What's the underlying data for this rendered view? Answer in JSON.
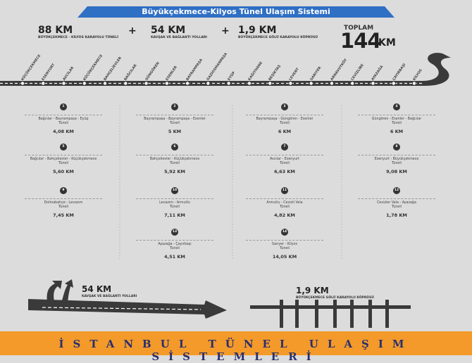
{
  "title": "Büyükçekmece-Kilyos Tünel Ulaşım Sistemi",
  "stats": [
    {
      "value": "88 KM",
      "label": "BÜYÜKÇEKMECE - KİLYOS KARAYOLU TÜNELİ"
    },
    {
      "value": "54 KM",
      "label": "KAVŞAK VE BAĞLANTI YOLLARI"
    },
    {
      "value": "1,9 KM",
      "label": "BÜYÜKÇEKMECE GÖLÜ KARAYOLU KÖPRÜSÜ"
    }
  ],
  "plus_sign": "+",
  "total": {
    "label": "TOPLAM",
    "value": "144",
    "unit": "KM"
  },
  "stations": [
    "KÜÇÜKÇEKMECE",
    "ESENYURT",
    "AVCILAR",
    "KÜÇÜKÇEKMECE",
    "BAHÇELİEVLER",
    "BAĞCILAR",
    "GÜNGÖREN",
    "ESENLER",
    "BAYRAMPAŞA",
    "GAZİOSMANPAŞA",
    "EYÜP",
    "KAĞITHANE",
    "BEŞİKTAŞ",
    "LEVENT",
    "SARIYER",
    "ARNAVUTKÖY",
    "CEVİZLİBE",
    "AYAZAĞA",
    "ÇAYIRBAŞI",
    "KİLYOS"
  ],
  "tunnels": [
    {
      "num": "1",
      "name_lines": [
        "Bağcılar - Bayrampaşa - Eyüp",
        "Tüneli"
      ],
      "length": "4,08 KM"
    },
    {
      "num": "5",
      "name_lines": [
        "Bağcılar - Bahçelievler - Küçükçekmece",
        "Tüneli"
      ],
      "length": "5,60 KM"
    },
    {
      "num": "9",
      "name_lines": [
        "Dolmabahçe - Levazım",
        "Tüneli"
      ],
      "length": "7,45 KM"
    },
    {
      "num": "2",
      "name_lines": [
        "Bayrampaşa - Bayrampaşa - Esenler",
        "Tüneli"
      ],
      "length": "5 KM"
    },
    {
      "num": "6",
      "name_lines": [
        "Bahçelievler - Küçükçekmece",
        "Tüneli"
      ],
      "length": "5,92 KM"
    },
    {
      "num": "10",
      "name_lines": [
        "Levazım - Armutlu",
        "Tüneli"
      ],
      "length": "7,11 KM"
    },
    {
      "num": "13",
      "name_lines": [
        "Ayazağa - Çayırbaşı",
        "Tüneli"
      ],
      "length": "4,51 KM"
    },
    {
      "num": "3",
      "name_lines": [
        "Bayrampaşa - Güngören - Esenler",
        "Tüneli"
      ],
      "length": "6 KM"
    },
    {
      "num": "7",
      "name_lines": [
        "Avcılar - Esenyurt",
        "Tüneli"
      ],
      "length": "6,63 KM"
    },
    {
      "num": "11",
      "name_lines": [
        "Armutlu - Cevizli Vela",
        "Tüneli"
      ],
      "length": "4,82 KM"
    },
    {
      "num": "14",
      "name_lines": [
        "Sarıyer - Kilyos",
        "Tüneli"
      ],
      "length": "14,05 KM"
    },
    {
      "num": "4",
      "name_lines": [
        "Güngören - Esenler - Bağcılar",
        "Tüneli"
      ],
      "length": "6 KM"
    },
    {
      "num": "8",
      "name_lines": [
        "Esenyurt - Büyükçekmece",
        "Tüneli"
      ],
      "length": "9,08 KM"
    },
    {
      "num": "12",
      "name_lines": [
        "Cevizler Vela - Ayazağa",
        "Tüneli"
      ],
      "length": "1,78 KM"
    }
  ],
  "legend": {
    "roads": {
      "value": "54 KM",
      "label": "KAVŞAK VE BAĞLANTI YOLLARI"
    },
    "bridge": {
      "value": "1,9 KM",
      "label": "BÜYÜKÇEKMECE GÖLÜ KARAYOLU KÖPRÜSÜ"
    }
  },
  "footer": "İSTANBUL TÜNEL ULAŞIM SİSTEMLERİ",
  "colors": {
    "banner": "#2f6fc4",
    "footer": "#f39a2a",
    "footer_text": "#2a2f6e",
    "road": "#3a3a3a"
  }
}
